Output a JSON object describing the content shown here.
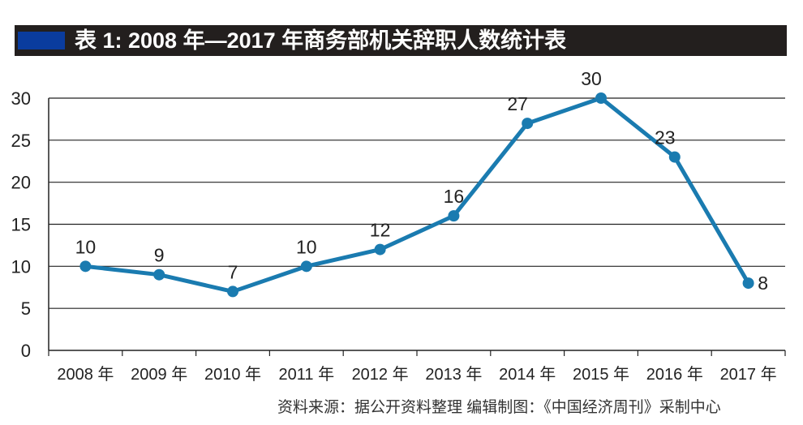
{
  "chart_data": {
    "type": "line",
    "title": "表 1: 2008 年—2017 年商务部机关辞职人数统计表",
    "categories": [
      "2008 年",
      "2009 年",
      "2010 年",
      "2011 年",
      "2012 年",
      "2013 年",
      "2014 年",
      "2015 年",
      "2016 年",
      "2017 年"
    ],
    "values": [
      10,
      9,
      7,
      10,
      12,
      16,
      27,
      30,
      23,
      8
    ],
    "data_labels": [
      "10",
      "9",
      "7",
      "10",
      "12",
      "16",
      "27",
      "30",
      "23",
      "8"
    ],
    "ylim": [
      0,
      30
    ],
    "yticks": [
      "0",
      "5",
      "10",
      "15",
      "20",
      "25",
      "30"
    ],
    "grid": true,
    "legend": "none",
    "line_color": "#1a7bb0",
    "title_bar_color": "#231f1e",
    "title_accent_color": "#0a3c9e",
    "source": "资料来源：据公开资料整理   编辑制图：《中国经济周刊》采制中心"
  }
}
